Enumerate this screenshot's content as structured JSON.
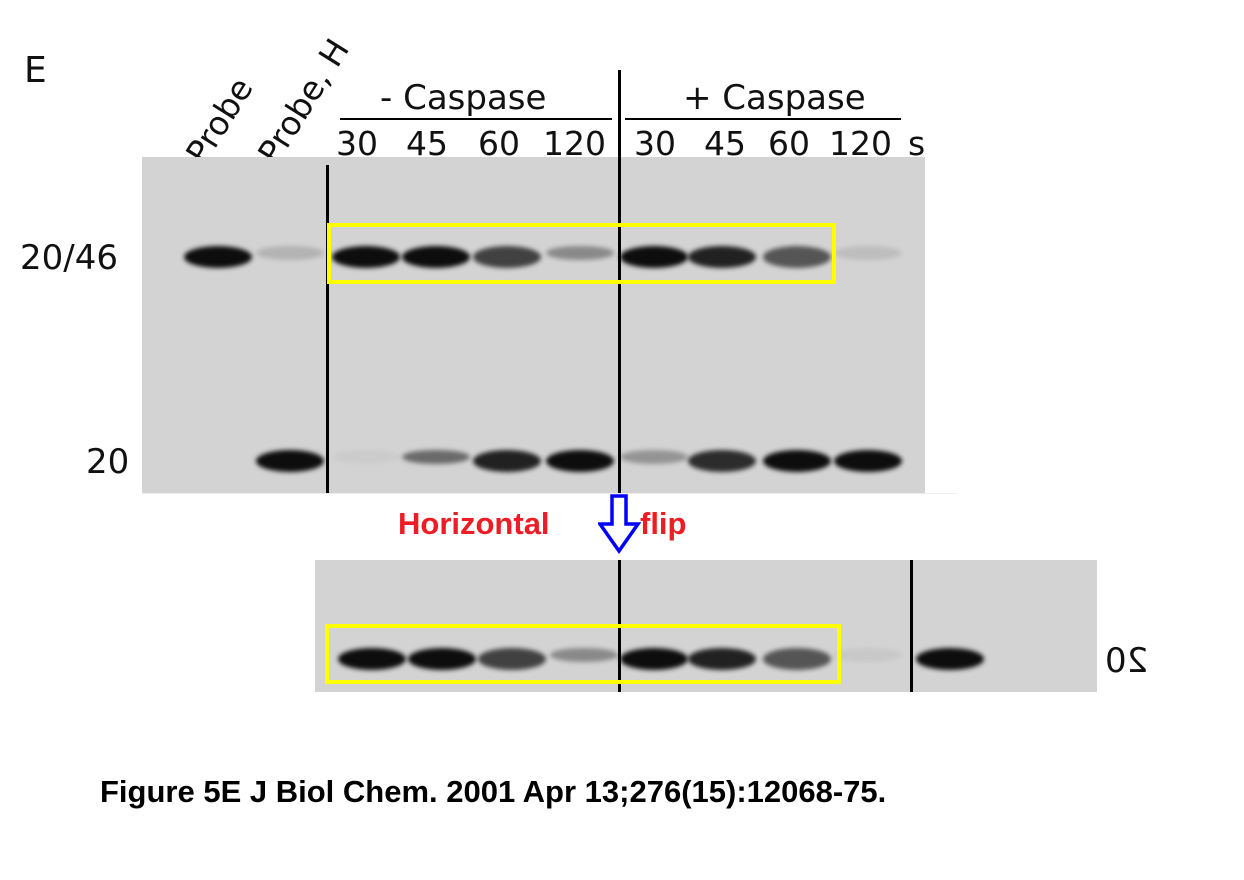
{
  "panel_letter": "E",
  "lane_labels_rotated": [
    "Probe",
    "Probe, H"
  ],
  "groups": [
    {
      "label": "- Caspase",
      "times": [
        "30",
        "45",
        "60",
        "120"
      ]
    },
    {
      "label": "+ Caspase",
      "times": [
        "30",
        "45",
        "60",
        "120"
      ]
    }
  ],
  "time_unit": "s",
  "marker_labels": {
    "upper": "20/46",
    "lower": "20"
  },
  "top_gel": {
    "lanes": [
      "Probe",
      "Probe, H",
      "-30",
      "-45",
      "-60",
      "-120",
      "+30",
      "+45",
      "+60",
      "+120"
    ],
    "upper_band_intensity": [
      1,
      0.15,
      1,
      1,
      0.7,
      0.35,
      1,
      0.85,
      0.6,
      0.1
    ],
    "lower_band_intensity": [
      0,
      1,
      0.03,
      0.5,
      0.85,
      1,
      0.3,
      0.8,
      1,
      1
    ]
  },
  "bottom_gel": {
    "band_intensity": [
      1,
      1,
      0.7,
      0.35,
      1,
      0.85,
      0.6,
      0.05,
      0,
      1
    ],
    "mirrored_label": "20"
  },
  "annotation": {
    "left": "Horizontal",
    "right": "flip",
    "text_color": "#ee1c24",
    "arrow_color": "#0000ff",
    "box_color": "#ffff00"
  },
  "caption": "Figure 5E J Biol Chem. 2001 Apr 13;276(15):12068-75."
}
